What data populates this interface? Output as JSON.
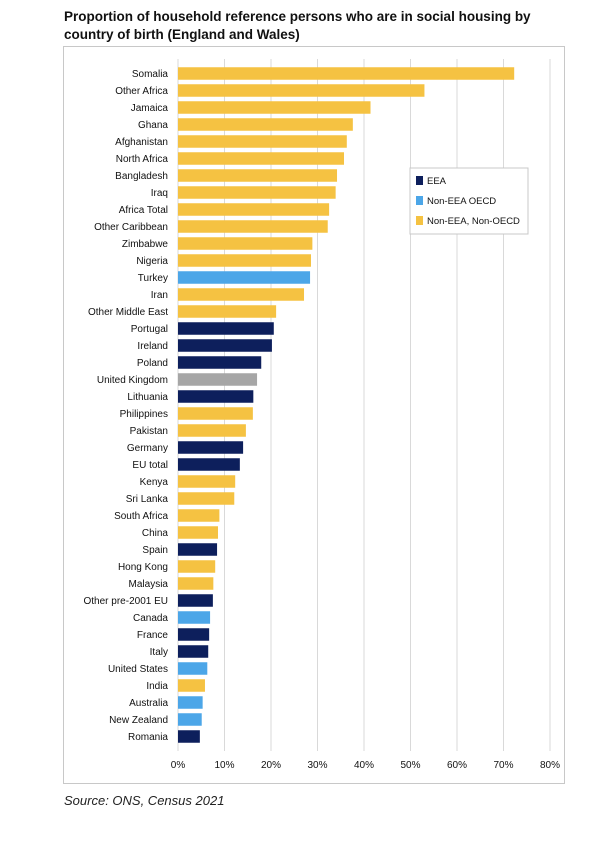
{
  "title": "Proportion of household reference persons who are in social housing by country of birth (England and Wales)",
  "source": "Source: ONS, Census 2021",
  "colors": {
    "EEA": "#0d1f5c",
    "Non-EEA OECD": "#4ca6e8",
    "Non-EEA, Non-OECD": "#f5c242",
    "United Kingdom": "#a6a6a6",
    "grid": "#d9d9d9"
  },
  "chart_data": {
    "type": "bar",
    "orientation": "horizontal",
    "xlim": [
      0,
      80
    ],
    "xticks": [
      "0%",
      "10%",
      "20%",
      "30%",
      "40%",
      "50%",
      "60%",
      "70%",
      "80%"
    ],
    "legend": {
      "placement": "top-right",
      "entries": [
        {
          "label": "EEA",
          "group": "EEA"
        },
        {
          "label": "Non-EEA OECD",
          "group": "Non-EEA OECD"
        },
        {
          "label": "Non-EEA, Non-OECD",
          "group": "Non-EEA, Non-OECD"
        }
      ]
    },
    "bars": [
      {
        "label": "Somalia",
        "value": 72.3,
        "group": "Non-EEA, Non-OECD"
      },
      {
        "label": "Other Africa",
        "value": 53.0,
        "group": "Non-EEA, Non-OECD"
      },
      {
        "label": "Jamaica",
        "value": 41.4,
        "group": "Non-EEA, Non-OECD"
      },
      {
        "label": "Ghana",
        "value": 37.6,
        "group": "Non-EEA, Non-OECD"
      },
      {
        "label": "Afghanistan",
        "value": 36.3,
        "group": "Non-EEA, Non-OECD"
      },
      {
        "label": "North Africa",
        "value": 35.7,
        "group": "Non-EEA, Non-OECD"
      },
      {
        "label": "Bangladesh",
        "value": 34.2,
        "group": "Non-EEA, Non-OECD"
      },
      {
        "label": "Iraq",
        "value": 33.9,
        "group": "Non-EEA, Non-OECD"
      },
      {
        "label": "Africa Total",
        "value": 32.5,
        "group": "Non-EEA, Non-OECD"
      },
      {
        "label": "Other Caribbean",
        "value": 32.2,
        "group": "Non-EEA, Non-OECD"
      },
      {
        "label": "Zimbabwe",
        "value": 28.9,
        "group": "Non-EEA, Non-OECD"
      },
      {
        "label": "Nigeria",
        "value": 28.6,
        "group": "Non-EEA, Non-OECD"
      },
      {
        "label": "Turkey",
        "value": 28.4,
        "group": "Non-EEA OECD"
      },
      {
        "label": "Iran",
        "value": 27.1,
        "group": "Non-EEA, Non-OECD"
      },
      {
        "label": "Other Middle East",
        "value": 21.1,
        "group": "Non-EEA, Non-OECD"
      },
      {
        "label": "Portugal",
        "value": 20.6,
        "group": "EEA"
      },
      {
        "label": "Ireland",
        "value": 20.2,
        "group": "EEA"
      },
      {
        "label": "Poland",
        "value": 17.9,
        "group": "EEA"
      },
      {
        "label": "United Kingdom",
        "value": 17.0,
        "group": "United Kingdom"
      },
      {
        "label": "Lithuania",
        "value": 16.2,
        "group": "EEA"
      },
      {
        "label": "Philippines",
        "value": 16.1,
        "group": "Non-EEA, Non-OECD"
      },
      {
        "label": "Pakistan",
        "value": 14.6,
        "group": "Non-EEA, Non-OECD"
      },
      {
        "label": "Germany",
        "value": 14.0,
        "group": "EEA"
      },
      {
        "label": "EU total",
        "value": 13.3,
        "group": "EEA"
      },
      {
        "label": "Kenya",
        "value": 12.3,
        "group": "Non-EEA, Non-OECD"
      },
      {
        "label": "Sri Lanka",
        "value": 12.1,
        "group": "Non-EEA, Non-OECD"
      },
      {
        "label": "South Africa",
        "value": 8.9,
        "group": "Non-EEA, Non-OECD"
      },
      {
        "label": "China",
        "value": 8.6,
        "group": "Non-EEA, Non-OECD"
      },
      {
        "label": "Spain",
        "value": 8.4,
        "group": "EEA"
      },
      {
        "label": "Hong Kong",
        "value": 8.0,
        "group": "Non-EEA, Non-OECD"
      },
      {
        "label": "Malaysia",
        "value": 7.6,
        "group": "Non-EEA, Non-OECD"
      },
      {
        "label": "Other pre-2001 EU",
        "value": 7.5,
        "group": "EEA"
      },
      {
        "label": "Canada",
        "value": 6.9,
        "group": "Non-EEA OECD"
      },
      {
        "label": "France",
        "value": 6.7,
        "group": "EEA"
      },
      {
        "label": "Italy",
        "value": 6.5,
        "group": "EEA"
      },
      {
        "label": "United States",
        "value": 6.3,
        "group": "Non-EEA OECD"
      },
      {
        "label": "India",
        "value": 5.8,
        "group": "Non-EEA, Non-OECD"
      },
      {
        "label": "Australia",
        "value": 5.3,
        "group": "Non-EEA OECD"
      },
      {
        "label": "New Zealand",
        "value": 5.1,
        "group": "Non-EEA OECD"
      },
      {
        "label": "Romania",
        "value": 4.7,
        "group": "EEA"
      }
    ]
  }
}
